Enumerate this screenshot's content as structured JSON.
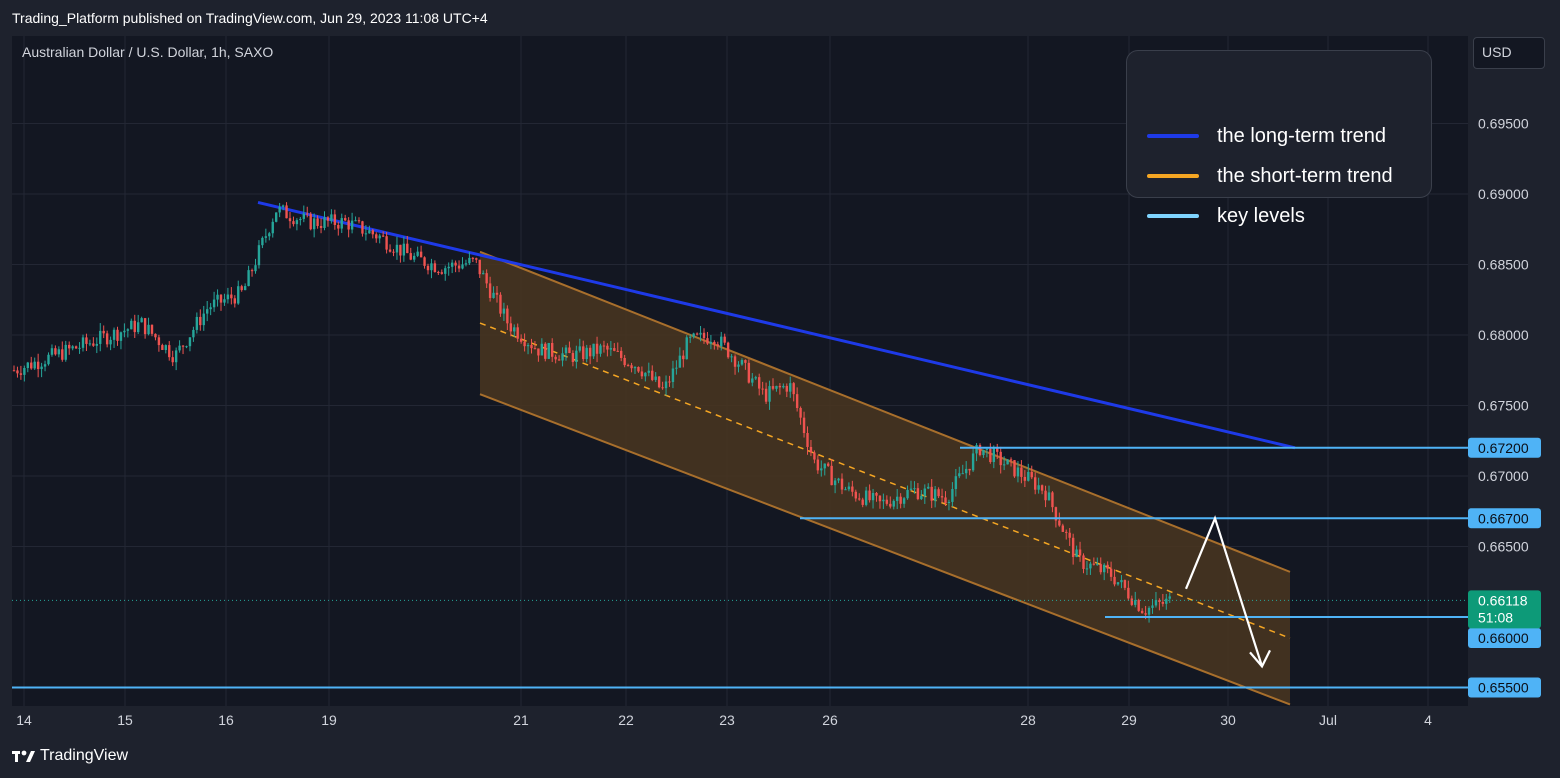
{
  "header": {
    "published": "Trading_Platform published on TradingView.com, Jun 29, 2023 11:08 UTC+4"
  },
  "symbol": "Australian Dollar / U.S. Dollar, 1h, SAXO",
  "currency": "USD",
  "legend": [
    {
      "label": "the long-term trend",
      "color": "#1e3ae8"
    },
    {
      "label": "the short-term trend",
      "color": "#f5a623"
    },
    {
      "label": "key levels",
      "color": "#7fd4ff"
    }
  ],
  "footer": {
    "brand": "TradingView",
    "brand_icon": "tradingview-logo-icon"
  },
  "colors": {
    "up": "#26a69a",
    "down": "#ef5350",
    "level": "#4fb3f6",
    "channel_fill": "#4a3620",
    "channel_edge": "#a86f2c",
    "midline": "#f5a623",
    "long_trend": "#1e3ae8",
    "price_badge": "#0d9a78"
  },
  "chart_data": {
    "type": "candlestick",
    "title": "Australian Dollar / U.S. Dollar, 1h, SAXO",
    "x_ticks": [
      "14",
      "15",
      "16",
      "19",
      "21",
      "22",
      "23",
      "26",
      "28",
      "29",
      "30",
      "Jul",
      "4"
    ],
    "y_ticks": [
      "0.69500",
      "0.69000",
      "0.68500",
      "0.68000",
      "0.67500",
      "0.67000",
      "0.66500"
    ],
    "ylim": [
      0.6538,
      0.6968
    ],
    "key_levels": [
      {
        "label": "0.67200",
        "value": 0.672
      },
      {
        "label": "0.66700",
        "value": 0.667
      },
      {
        "label": "0.66000",
        "value": 0.66
      },
      {
        "label": "0.65500",
        "value": 0.655
      }
    ],
    "current_price": {
      "label": "0.66118",
      "value": 0.66118,
      "countdown": "51:08"
    },
    "long_term_trend": {
      "from": [
        "Jun 16",
        0.6894
      ],
      "to": [
        "Jun 30",
        0.672
      ]
    },
    "short_term_channel": {
      "upper": [
        [
          "Jun 20",
          0.6859
        ],
        [
          "Jul 1",
          0.6632
        ]
      ],
      "lower": [
        [
          "Jun 20",
          0.6758
        ],
        [
          "Jul 1",
          0.6538
        ]
      ]
    },
    "forecast": [
      "0.6620",
      "0.6670",
      "0.6565"
    ],
    "price_path": [
      [
        "Jun 14",
        0.6775
      ],
      [
        "Jun 15",
        0.6808
      ],
      [
        "Jun 15",
        0.6785
      ],
      [
        "Jun 15",
        0.682
      ],
      [
        "Jun 16",
        0.683
      ],
      [
        "Jun 16",
        0.6889
      ],
      [
        "Jun 16",
        0.688
      ],
      [
        "Jun 19",
        0.688
      ],
      [
        "Jun 19",
        0.687
      ],
      [
        "Jun 19",
        0.6855
      ],
      [
        "Jun 20",
        0.6848
      ],
      [
        "Jun 20",
        0.6852
      ],
      [
        "Jun 20",
        0.6808
      ],
      [
        "Jun 21",
        0.679
      ],
      [
        "Jun 21",
        0.6785
      ],
      [
        "Jun 21",
        0.679
      ],
      [
        "Jun 22",
        0.6778
      ],
      [
        "Jun 22",
        0.676
      ],
      [
        "Jun 22",
        0.6795
      ],
      [
        "Jun 22",
        0.68
      ],
      [
        "Jun 23",
        0.678
      ],
      [
        "Jun 23",
        0.6757
      ],
      [
        "Jun 23",
        0.6765
      ],
      [
        "Jun 23",
        0.671
      ],
      [
        "Jun 26",
        0.669
      ],
      [
        "Jun 26",
        0.668
      ],
      [
        "Jun 26",
        0.669
      ],
      [
        "Jun 27",
        0.6685
      ],
      [
        "Jun 27",
        0.672
      ],
      [
        "Jun 27",
        0.6705
      ],
      [
        "Jun 28",
        0.669
      ],
      [
        "Jun 28",
        0.664
      ],
      [
        "Jun 28",
        0.663
      ],
      [
        "Jun 29",
        0.6605
      ],
      [
        "Jun 29",
        0.6612
      ]
    ]
  }
}
